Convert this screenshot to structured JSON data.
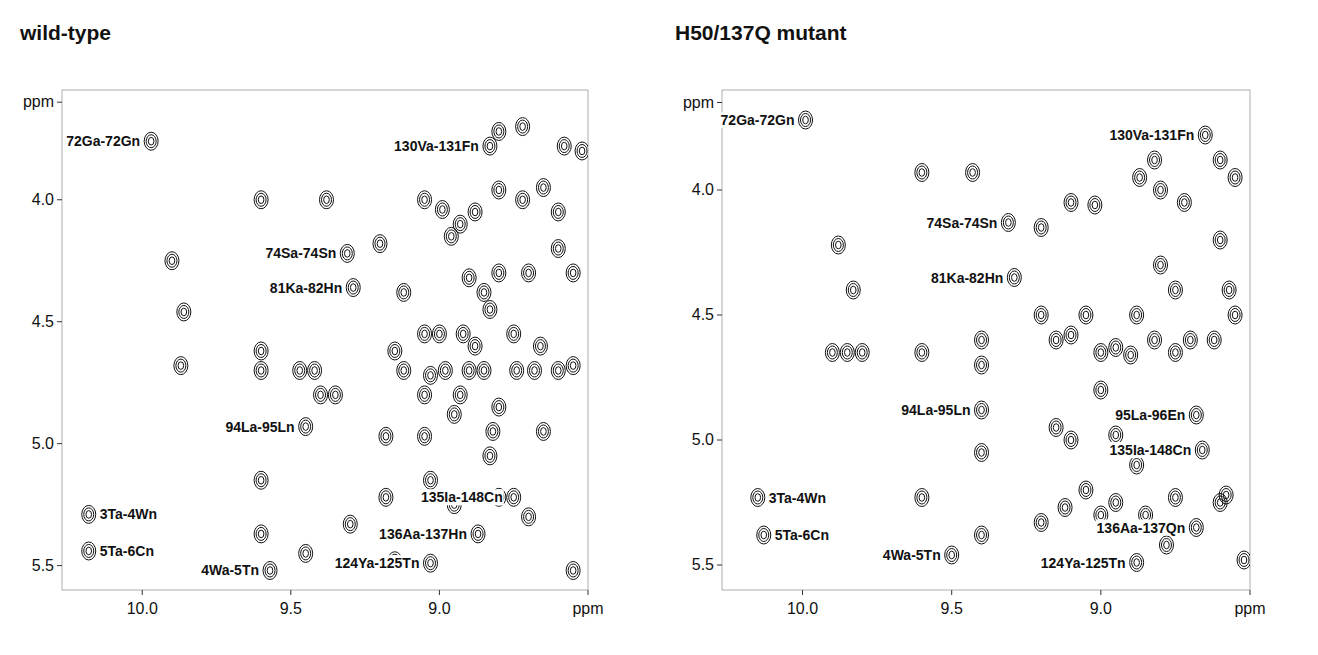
{
  "chart_data": [
    {
      "type": "scatter",
      "title": "wild-type",
      "xlim": [
        10.27,
        8.5
      ],
      "ylim": [
        3.55,
        5.6
      ],
      "xticks": [
        {
          "value": 10,
          "label": "10.0"
        },
        9.5,
        {
          "value": 9,
          "label": "9.0"
        },
        {
          "value": 8.5,
          "label": "ppm"
        }
      ],
      "yticks": [
        {
          "value": 3.6,
          "label": "ppm"
        },
        {
          "value": 4,
          "label": "4.0"
        },
        4.5,
        {
          "value": 5,
          "label": "5.0"
        },
        5.5
      ],
      "series": [
        {
          "color": "#111111",
          "x": [
            9.97,
            8.83,
            9.31,
            9.29,
            9.45,
            10.18,
            10.18,
            9.57,
            9.03,
            8.87,
            8.75,
            9.9,
            9.86,
            9.87,
            9.6,
            9.38,
            9.6,
            9.47,
            9.42,
            9.35,
            9.4,
            9.2,
            9.05,
            8.99,
            8.93,
            8.96,
            8.88,
            8.8,
            8.72,
            8.65,
            8.6,
            8.8,
            8.72,
            8.58,
            8.52,
            9.12,
            8.9,
            8.85,
            8.83,
            8.8,
            8.7,
            8.55,
            9.15,
            9.05,
            9.0,
            8.92,
            8.88,
            8.75,
            8.66,
            9.12,
            9.03,
            8.98,
            8.9,
            8.85,
            8.74,
            8.68,
            8.6,
            8.55,
            9.05,
            8.93,
            8.8,
            9.18,
            9.05,
            8.95,
            8.82,
            8.83,
            8.65,
            9.6,
            9.6,
            9.45,
            9.3,
            9.18,
            9.03,
            8.95,
            8.8,
            8.7,
            8.55,
            9.15,
            9.6,
            8.6
          ],
          "values": [
            3.76,
            3.78,
            4.22,
            4.36,
            4.93,
            5.29,
            5.44,
            5.52,
            5.49,
            5.37,
            5.22,
            4.25,
            4.46,
            4.68,
            4.0,
            4.0,
            4.7,
            4.7,
            4.7,
            4.8,
            4.8,
            4.18,
            4.0,
            4.04,
            4.1,
            4.15,
            4.05,
            3.96,
            4.0,
            3.95,
            4.05,
            3.72,
            3.7,
            3.78,
            3.8,
            4.38,
            4.32,
            4.38,
            4.45,
            4.3,
            4.3,
            4.3,
            4.62,
            4.55,
            4.55,
            4.55,
            4.6,
            4.55,
            4.6,
            4.7,
            4.72,
            4.7,
            4.7,
            4.7,
            4.7,
            4.7,
            4.7,
            4.68,
            4.8,
            4.8,
            4.85,
            4.97,
            4.97,
            4.88,
            4.95,
            5.05,
            4.95,
            5.15,
            5.37,
            5.45,
            5.33,
            5.22,
            5.15,
            5.25,
            5.22,
            5.3,
            5.52,
            5.48,
            4.62,
            4.2
          ],
          "labels": [
            "72Ga-72Gn",
            "130Va-131Fn",
            "74Sa-74Sn",
            "81Ka-82Hn",
            "94La-95Ln",
            "3Ta-4Wn",
            "5Ta-6Cn",
            "4Wa-5Tn",
            "124Ya-125Tn",
            "136Aa-137Hn",
            "135Ia-148Cn",
            null,
            null,
            null,
            null,
            null,
            null,
            null,
            null,
            null,
            null,
            null,
            null,
            null,
            null,
            null,
            null,
            null,
            null,
            null,
            null,
            null,
            null,
            null,
            null,
            null,
            null,
            null,
            null,
            null,
            null,
            null,
            null,
            null,
            null,
            null,
            null,
            null,
            null,
            null,
            null,
            null,
            null,
            null,
            null,
            null,
            null,
            null,
            null,
            null,
            null,
            null,
            null,
            null,
            null,
            null,
            null,
            null,
            null,
            null,
            null,
            null,
            null,
            null,
            null,
            null,
            null,
            null,
            null,
            null
          ]
        }
      ]
    },
    {
      "type": "scatter",
      "title": "H50/137Q mutant",
      "xlim": [
        10.27,
        8.5
      ],
      "ylim": [
        3.6,
        5.6
      ],
      "xticks": [
        {
          "value": 10,
          "label": "10.0"
        },
        9.5,
        {
          "value": 9,
          "label": "9.0"
        },
        {
          "value": 8.5,
          "label": "ppm"
        }
      ],
      "yticks": [
        {
          "value": 3.65,
          "label": "ppm"
        },
        {
          "value": 4,
          "label": "4.0"
        },
        4.5,
        {
          "value": 5,
          "label": "5.0"
        },
        5.5
      ],
      "series": [
        {
          "color": "#111111",
          "x": [
            9.99,
            8.65,
            9.31,
            9.29,
            9.4,
            8.68,
            8.66,
            10.15,
            10.13,
            9.5,
            8.88,
            8.68,
            9.88,
            9.83,
            9.6,
            9.43,
            9.2,
            9.1,
            9.02,
            8.87,
            8.82,
            8.8,
            8.72,
            8.6,
            8.55,
            9.4,
            9.4,
            9.15,
            9.1,
            9.0,
            8.95,
            8.9,
            8.82,
            8.75,
            8.7,
            8.62,
            8.57,
            8.75,
            8.8,
            8.88,
            9.05,
            9.2,
            8.6,
            8.55,
            9.6,
            9.8,
            9.85,
            9.9,
            9.0,
            9.15,
            9.1,
            8.95,
            8.88,
            9.4,
            9.05,
            9.0,
            8.95,
            8.85,
            8.75,
            8.6,
            8.58,
            9.6,
            9.4,
            9.2,
            9.12,
            8.78,
            8.52
          ],
          "values": [
            3.72,
            3.78,
            4.13,
            4.35,
            4.88,
            4.9,
            5.04,
            5.23,
            5.38,
            5.46,
            5.49,
            5.35,
            4.22,
            4.4,
            3.93,
            3.93,
            4.15,
            4.05,
            4.06,
            3.95,
            3.88,
            4.0,
            4.05,
            3.88,
            3.95,
            4.6,
            4.7,
            4.6,
            4.58,
            4.65,
            4.63,
            4.66,
            4.6,
            4.65,
            4.6,
            4.6,
            4.4,
            4.4,
            4.3,
            4.5,
            4.5,
            4.5,
            4.2,
            4.5,
            4.65,
            4.65,
            4.65,
            4.65,
            4.8,
            4.95,
            5.0,
            4.98,
            5.1,
            5.05,
            5.2,
            5.3,
            5.25,
            5.3,
            5.23,
            5.25,
            5.22,
            5.23,
            5.38,
            5.33,
            5.27,
            5.42,
            5.48
          ],
          "labels": [
            "72Ga-72Gn",
            "130Va-131Fn",
            "74Sa-74Sn",
            "81Ka-82Hn",
            "94La-95Ln",
            "95La-96En",
            "135Ia-148Cn",
            "3Ta-4Wn",
            "5Ta-6Cn",
            "4Wa-5Tn",
            "124Ya-125Tn",
            "136Aa-137Qn",
            null,
            null,
            null,
            null,
            null,
            null,
            null,
            null,
            null,
            null,
            null,
            null,
            null,
            null,
            null,
            null,
            null,
            null,
            null,
            null,
            null,
            null,
            null,
            null,
            null,
            null,
            null,
            null,
            null,
            null,
            null,
            null,
            null,
            null,
            null,
            null,
            null,
            null,
            null,
            null,
            null,
            null,
            null,
            null,
            null,
            null,
            null,
            null,
            null,
            null,
            null,
            null,
            null,
            null,
            null
          ]
        }
      ]
    }
  ]
}
